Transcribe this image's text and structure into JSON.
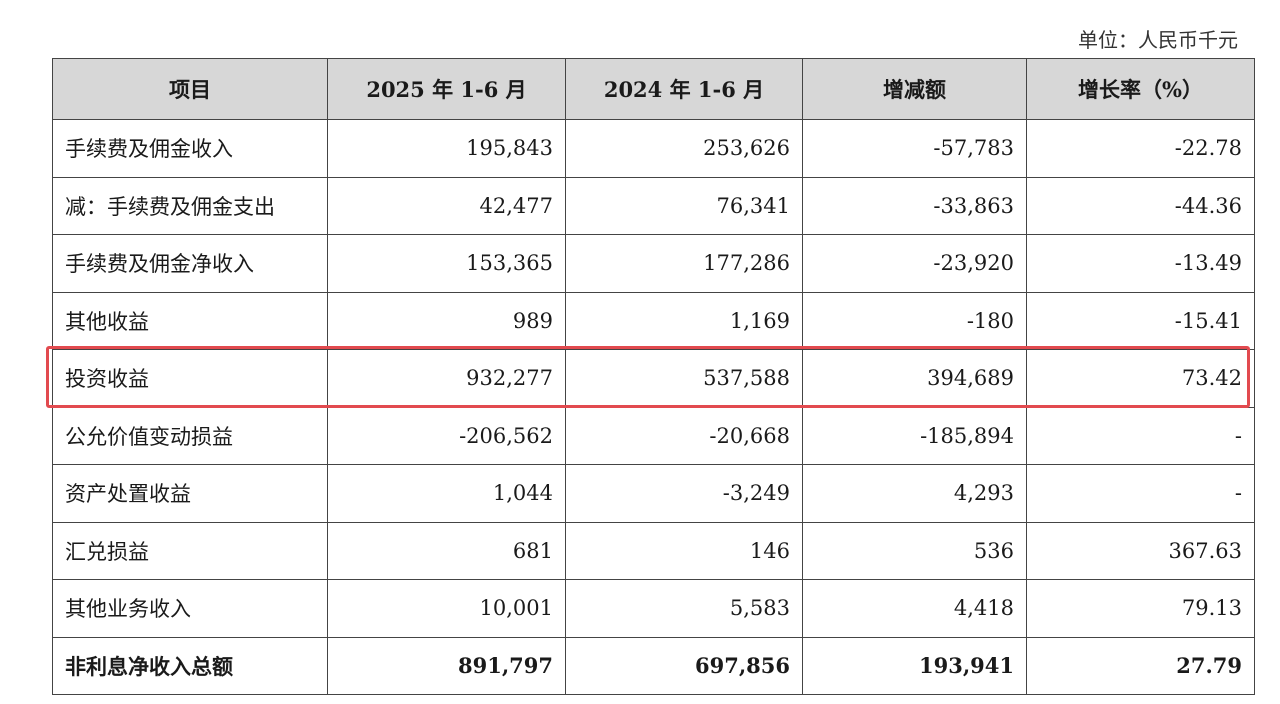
{
  "unit_label": "单位：人民币千元",
  "headers": [
    "项目",
    "2025 年 1-6 月",
    "2024 年 1-6 月",
    "增减额",
    "增长率（%）"
  ],
  "rows": [
    {
      "item": "手续费及佣金收入",
      "y2025": "195,843",
      "y2024": "253,626",
      "change": "-57,783",
      "rate": "-22.78"
    },
    {
      "item": "减：手续费及佣金支出",
      "y2025": "42,477",
      "y2024": "76,341",
      "change": "-33,863",
      "rate": "-44.36"
    },
    {
      "item": "手续费及佣金净收入",
      "y2025": "153,365",
      "y2024": "177,286",
      "change": "-23,920",
      "rate": "-13.49"
    },
    {
      "item": "其他收益",
      "y2025": "989",
      "y2024": "1,169",
      "change": "-180",
      "rate": "-15.41"
    },
    {
      "item": "投资收益",
      "y2025": "932,277",
      "y2024": "537,588",
      "change": "394,689",
      "rate": "73.42"
    },
    {
      "item": "公允价值变动损益",
      "y2025": "-206,562",
      "y2024": "-20,668",
      "change": "-185,894",
      "rate": "-"
    },
    {
      "item": "资产处置收益",
      "y2025": "1,044",
      "y2024": "-3,249",
      "change": "4,293",
      "rate": "-"
    },
    {
      "item": "汇兑损益",
      "y2025": "681",
      "y2024": "146",
      "change": "536",
      "rate": "367.63"
    },
    {
      "item": "其他业务收入",
      "y2025": "10,001",
      "y2024": "5,583",
      "change": "4,418",
      "rate": "79.13"
    },
    {
      "item": "非利息净收入总额",
      "y2025": "891,797",
      "y2024": "697,856",
      "change": "193,941",
      "rate": "27.79"
    }
  ],
  "highlighted_row": "投资收益",
  "highlight_color": "#e24a4f",
  "header_bg": "#d7d7d7"
}
